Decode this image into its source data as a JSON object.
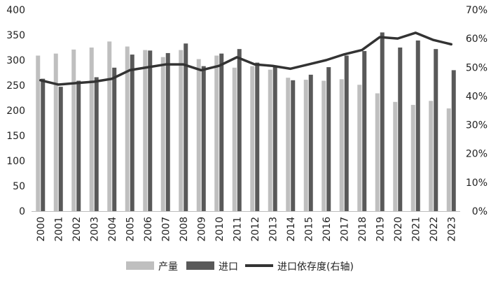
{
  "chart_data": {
    "type": "bar",
    "categories": [
      "2000",
      "2001",
      "2002",
      "2003",
      "2004",
      "2005",
      "2006",
      "2007",
      "2008",
      "2009",
      "2010",
      "2011",
      "2012",
      "2013",
      "2014",
      "2015",
      "2016",
      "2017",
      "2018",
      "2019",
      "2020",
      "2021",
      "2022",
      "2023"
    ],
    "series": [
      {
        "name": "产量",
        "type": "bar",
        "axis": "left",
        "color": "#bfbfbf",
        "values": [
          309,
          313,
          321,
          325,
          337,
          327,
          320,
          306,
          320,
          302,
          309,
          285,
          288,
          281,
          265,
          261,
          259,
          262,
          251,
          234,
          217,
          211,
          219,
          204
        ]
      },
      {
        "name": "进口",
        "type": "bar",
        "axis": "left",
        "color": "#595959",
        "values": [
          263,
          247,
          259,
          266,
          285,
          311,
          319,
          314,
          333,
          288,
          313,
          322,
          295,
          287,
          260,
          271,
          286,
          309,
          318,
          355,
          325,
          339,
          322,
          280
        ]
      },
      {
        "name": "进口依存度(右轴)",
        "type": "line",
        "axis": "right",
        "color": "#333333",
        "values": [
          45.5,
          44.0,
          44.5,
          45.0,
          46.0,
          49.0,
          50.0,
          51.0,
          51.0,
          49.0,
          50.5,
          53.5,
          51.0,
          50.5,
          49.5,
          51.0,
          52.5,
          54.5,
          56.0,
          60.5,
          60.0,
          62.0,
          59.5,
          58.0
        ]
      }
    ],
    "y_left": {
      "min": 0,
      "max": 400,
      "step": 50,
      "tick_labels": [
        "0",
        "50",
        "100",
        "150",
        "200",
        "250",
        "300",
        "350",
        "400"
      ]
    },
    "y_right": {
      "min": 0,
      "max": 70,
      "step": 10,
      "unit": "%",
      "tick_labels": [
        "0%",
        "10%",
        "20%",
        "30%",
        "40%",
        "50%",
        "60%",
        "70%"
      ]
    },
    "grid": false,
    "legend_position": "bottom",
    "title": "",
    "xlabel": "",
    "ylabel": ""
  }
}
